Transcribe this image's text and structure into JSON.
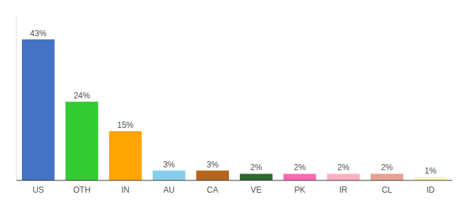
{
  "chart_data": {
    "type": "bar",
    "categories": [
      "US",
      "OTH",
      "IN",
      "AU",
      "CA",
      "VE",
      "PK",
      "IR",
      "CL",
      "ID"
    ],
    "values": [
      43,
      24,
      15,
      3,
      3,
      2,
      2,
      2,
      2,
      1
    ],
    "value_labels": [
      "43%",
      "24%",
      "15%",
      "3%",
      "3%",
      "2%",
      "2%",
      "2%",
      "2%",
      "1%"
    ],
    "colors": [
      "#4472c4",
      "#33cc33",
      "#ffa500",
      "#87ceeb",
      "#b5651d",
      "#2d6a2d",
      "#ff69b4",
      "#ffb0c0",
      "#e8a090",
      "#f5f5c0"
    ],
    "ylim": [
      0,
      50
    ],
    "data_labels": true,
    "tick_labels": "x",
    "grid": false
  }
}
